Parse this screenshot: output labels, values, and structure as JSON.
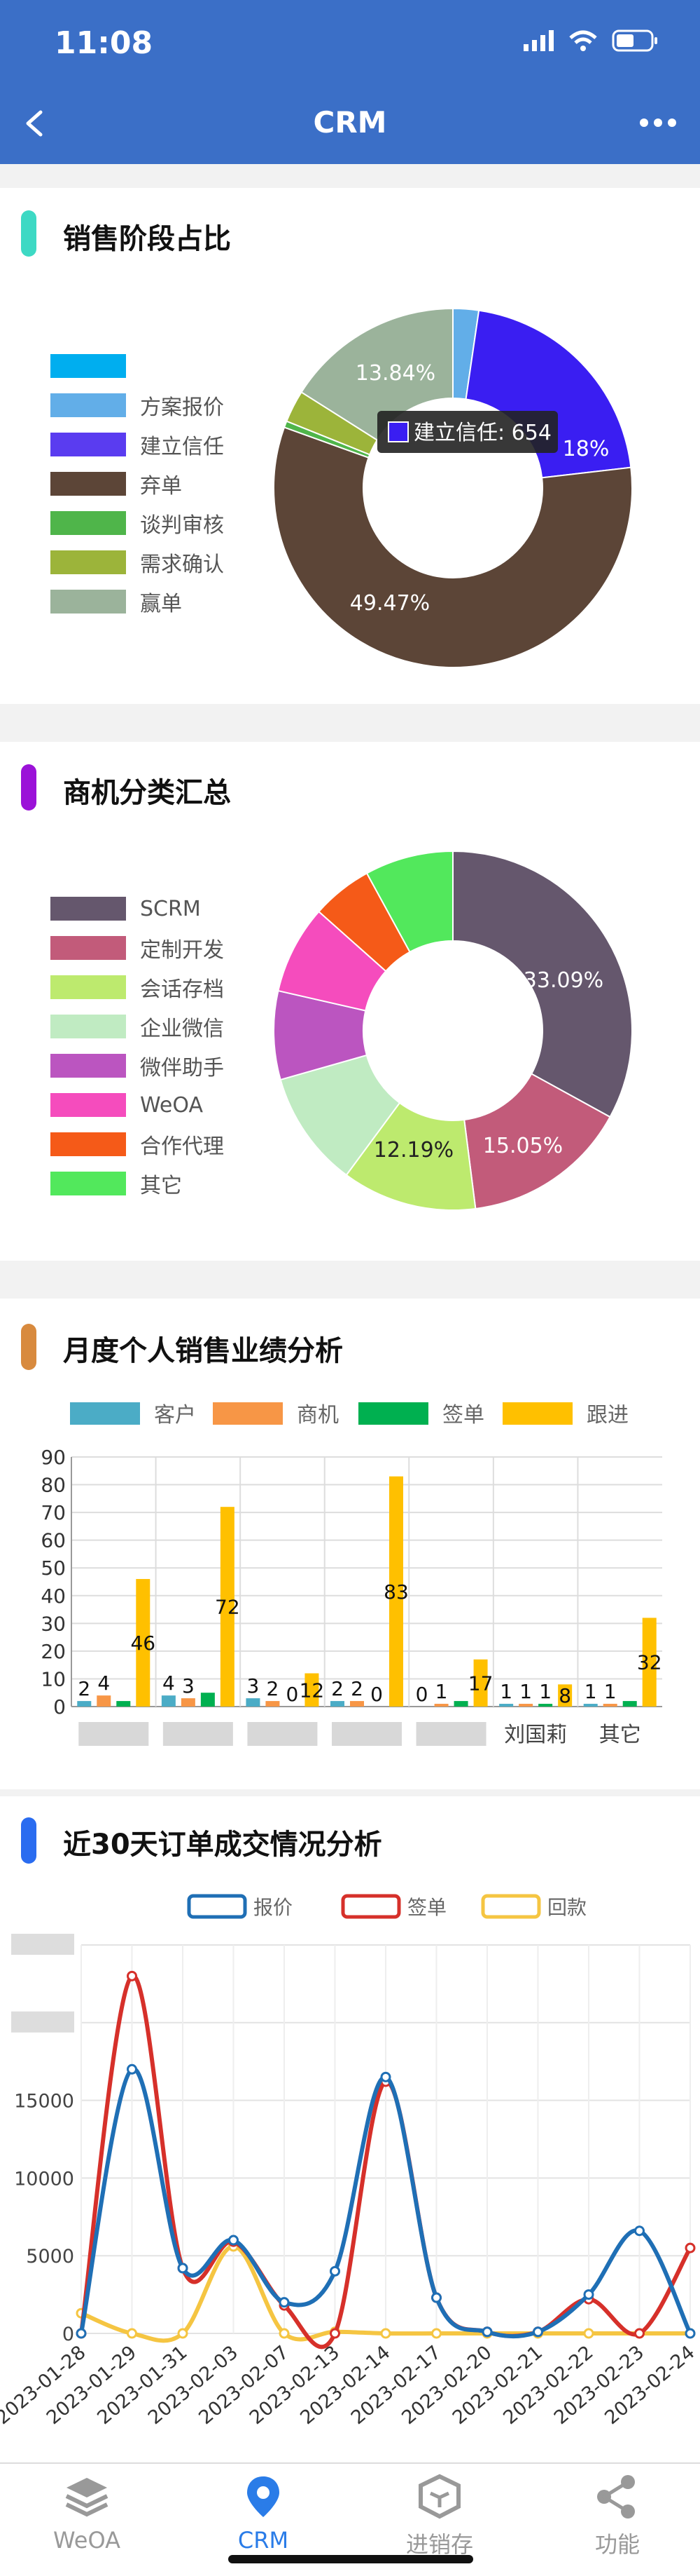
{
  "status": {
    "time": "11:08"
  },
  "nav": {
    "title": "CRM"
  },
  "sales_stage": {
    "title": "销售阶段占比",
    "indicator_color": "#3dd9c4",
    "legend": [
      {
        "label": "",
        "color": "#00aeef"
      },
      {
        "label": "方案报价",
        "color": "#62aee8"
      },
      {
        "label": "建立信任",
        "color": "#5a3cf0"
      },
      {
        "label": "弃单",
        "color": "#5c4537"
      },
      {
        "label": "谈判审核",
        "color": "#4fb54a"
      },
      {
        "label": "需求确认",
        "color": "#9cb43a"
      },
      {
        "label": "赢单",
        "color": "#9bb39b"
      }
    ],
    "slice_labels": [
      "13.84%",
      "49.47%",
      "18%"
    ],
    "tooltip": "建立信任: 654"
  },
  "opportunity": {
    "title": "商机分类汇总",
    "indicator_color": "#9b12d8",
    "legend": [
      {
        "label": "SCRM",
        "color": "#65576d"
      },
      {
        "label": "定制开发",
        "color": "#c25b7a"
      },
      {
        "label": "会话存档",
        "color": "#bdea6e"
      },
      {
        "label": "企业微信",
        "color": "#c0ebc2"
      },
      {
        "label": "微伴助手",
        "color": "#bb55c0"
      },
      {
        "label": "WeOA",
        "color": "#f54cbd"
      },
      {
        "label": "合作代理",
        "color": "#f55a18"
      },
      {
        "label": "其它",
        "color": "#52e85c"
      }
    ],
    "slice_labels": [
      "33.09%",
      "15.05%",
      "12.19%"
    ]
  },
  "monthly": {
    "title": "月度个人销售业绩分析",
    "indicator_color": "#d88a3e"
  },
  "orders30": {
    "title_prefix": "近",
    "title_num": "30",
    "title_suffix": "天订单成交情况分析",
    "indicator_color": "#2a6cf0"
  },
  "chart_data": [
    {
      "type": "pie",
      "categories": [
        "",
        "方案报价",
        "建立信任",
        "弃单",
        "谈判审核",
        "需求确认",
        "赢单"
      ],
      "values": [
        0.0,
        2.0,
        18.0,
        49.47,
        0.5,
        2.5,
        13.84
      ],
      "colors": [
        "#00aeef",
        "#62aee8",
        "#3a1ef2",
        "#5c4537",
        "#4fb54a",
        "#9cb43a",
        "#9bb39b"
      ]
    },
    {
      "type": "pie",
      "categories": [
        "SCRM",
        "定制开发",
        "会话存档",
        "企业微信",
        "微伴助手",
        "WeOA",
        "合作代理",
        "其它"
      ],
      "values": [
        33.09,
        15.05,
        12.19,
        10.5,
        8.0,
        8.0,
        5.5,
        8.0
      ],
      "colors": [
        "#65576d",
        "#c25b7a",
        "#bdea6e",
        "#c0ebc2",
        "#bb55c0",
        "#f54cbd",
        "#f55a18",
        "#52e85c"
      ]
    },
    {
      "type": "bar",
      "categories": [
        "",
        "",
        "",
        "",
        "",
        "刘国莉",
        "其它"
      ],
      "series": [
        {
          "name": "客户",
          "color": "#4bacc6",
          "values": [
            2,
            4,
            3,
            2,
            0,
            1,
            1
          ]
        },
        {
          "name": "商机",
          "color": "#f79646",
          "values": [
            4,
            3,
            2,
            2,
            1,
            1,
            1
          ]
        },
        {
          "name": "签单",
          "color": "#00b050",
          "values": [
            2,
            5,
            0,
            0,
            2,
            1,
            2
          ]
        },
        {
          "name": "跟进",
          "color": "#ffc000",
          "values": [
            46,
            72,
            12,
            83,
            17,
            8,
            32
          ]
        }
      ],
      "labeled": [
        [
          [
            0,
            1,
            3
          ],
          [
            2,
            4,
            46
          ]
        ],
        [
          [
            0,
            1,
            3
          ],
          [
            4,
            3,
            72
          ]
        ],
        [
          [
            0,
            1,
            2,
            3
          ],
          [
            3,
            2,
            0,
            12
          ]
        ],
        [
          [
            0,
            1,
            2,
            3
          ],
          [
            2,
            2,
            0,
            83
          ]
        ],
        [
          [
            0,
            1,
            3
          ],
          [
            0,
            1,
            17
          ]
        ],
        [
          [
            0,
            1,
            2,
            3
          ],
          [
            1,
            1,
            1,
            8
          ]
        ],
        [
          [
            0,
            1,
            3
          ],
          [
            1,
            1,
            32
          ]
        ]
      ],
      "ylim": [
        0,
        90
      ],
      "yticks": [
        0,
        10,
        20,
        30,
        40,
        50,
        60,
        70,
        80,
        90
      ]
    },
    {
      "type": "line",
      "x": [
        "2023-01-28",
        "2023-01-29",
        "2023-01-31",
        "2023-02-03",
        "2023-02-07",
        "2023-02-13",
        "2023-02-14",
        "2023-02-17",
        "2023-02-20",
        "2023-02-21",
        "2023-02-22",
        "2023-02-23",
        "2023-02-24"
      ],
      "series": [
        {
          "name": "报价",
          "color": "#1f6fb5",
          "values": [
            0,
            17000,
            4200,
            6000,
            2000,
            4000,
            16500,
            2300,
            100,
            100,
            2500,
            6600,
            0
          ]
        },
        {
          "name": "签单",
          "color": "#d6302a",
          "values": [
            0,
            23000,
            4200,
            5900,
            1800,
            0,
            16200,
            2300,
            100,
            100,
            2200,
            0,
            5500
          ]
        },
        {
          "name": "回款",
          "color": "#f5c542",
          "values": [
            1300,
            0,
            0,
            5600,
            0,
            100,
            0,
            0,
            0,
            0,
            0,
            0,
            0
          ]
        }
      ],
      "ylim": [
        0,
        25000
      ],
      "yticks": [
        0,
        5000,
        10000,
        15000
      ]
    }
  ],
  "tabs": [
    {
      "label": "WeOA"
    },
    {
      "label": "CRM"
    },
    {
      "label": "进销存"
    },
    {
      "label": "功能"
    }
  ]
}
